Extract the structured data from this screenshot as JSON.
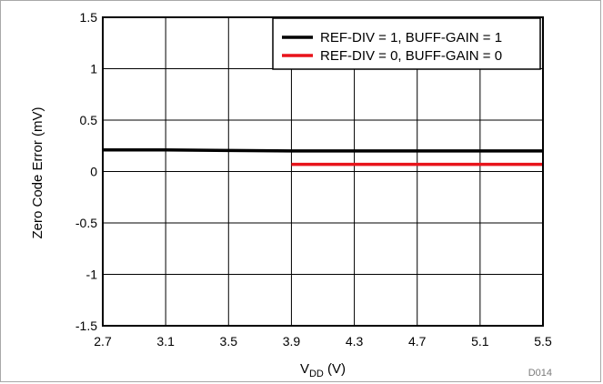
{
  "chart_data": {
    "type": "line",
    "title": "",
    "xlabel_main": "V",
    "xlabel_sub": "DD",
    "xlabel_unit": " (V)",
    "ylabel": "Zero Code Error (mV)",
    "xlim": [
      2.7,
      5.5
    ],
    "ylim": [
      -1.5,
      1.5
    ],
    "x_ticks": [
      2.7,
      3.1,
      3.5,
      3.9,
      4.3,
      4.7,
      5.1,
      5.5
    ],
    "x_tick_labels": [
      "2.7",
      "3.1",
      "3.5",
      "3.9",
      "4.3",
      "4.7",
      "5.1",
      "5.5"
    ],
    "y_ticks": [
      -1.5,
      -1,
      -0.5,
      0,
      0.5,
      1,
      1.5
    ],
    "y_tick_labels": [
      "-1.5",
      "-1",
      "-0.5",
      "0",
      "0.5",
      "1",
      "1.5"
    ],
    "grid": true,
    "legend_position": "top-right",
    "series": [
      {
        "name": "REF-DIV = 1, BUFF-GAIN = 1",
        "color": "#000000",
        "x": [
          2.7,
          3.1,
          3.5,
          3.9,
          4.3,
          4.7,
          5.1,
          5.5
        ],
        "y": [
          0.21,
          0.21,
          0.205,
          0.2,
          0.2,
          0.2,
          0.2,
          0.2
        ]
      },
      {
        "name": "REF-DIV = 0, BUFF-GAIN = 0",
        "color": "#e8141b",
        "x": [
          3.9,
          4.3,
          4.7,
          5.1,
          5.5
        ],
        "y": [
          0.07,
          0.07,
          0.07,
          0.07,
          0.07
        ]
      }
    ]
  },
  "watermark": "D014"
}
